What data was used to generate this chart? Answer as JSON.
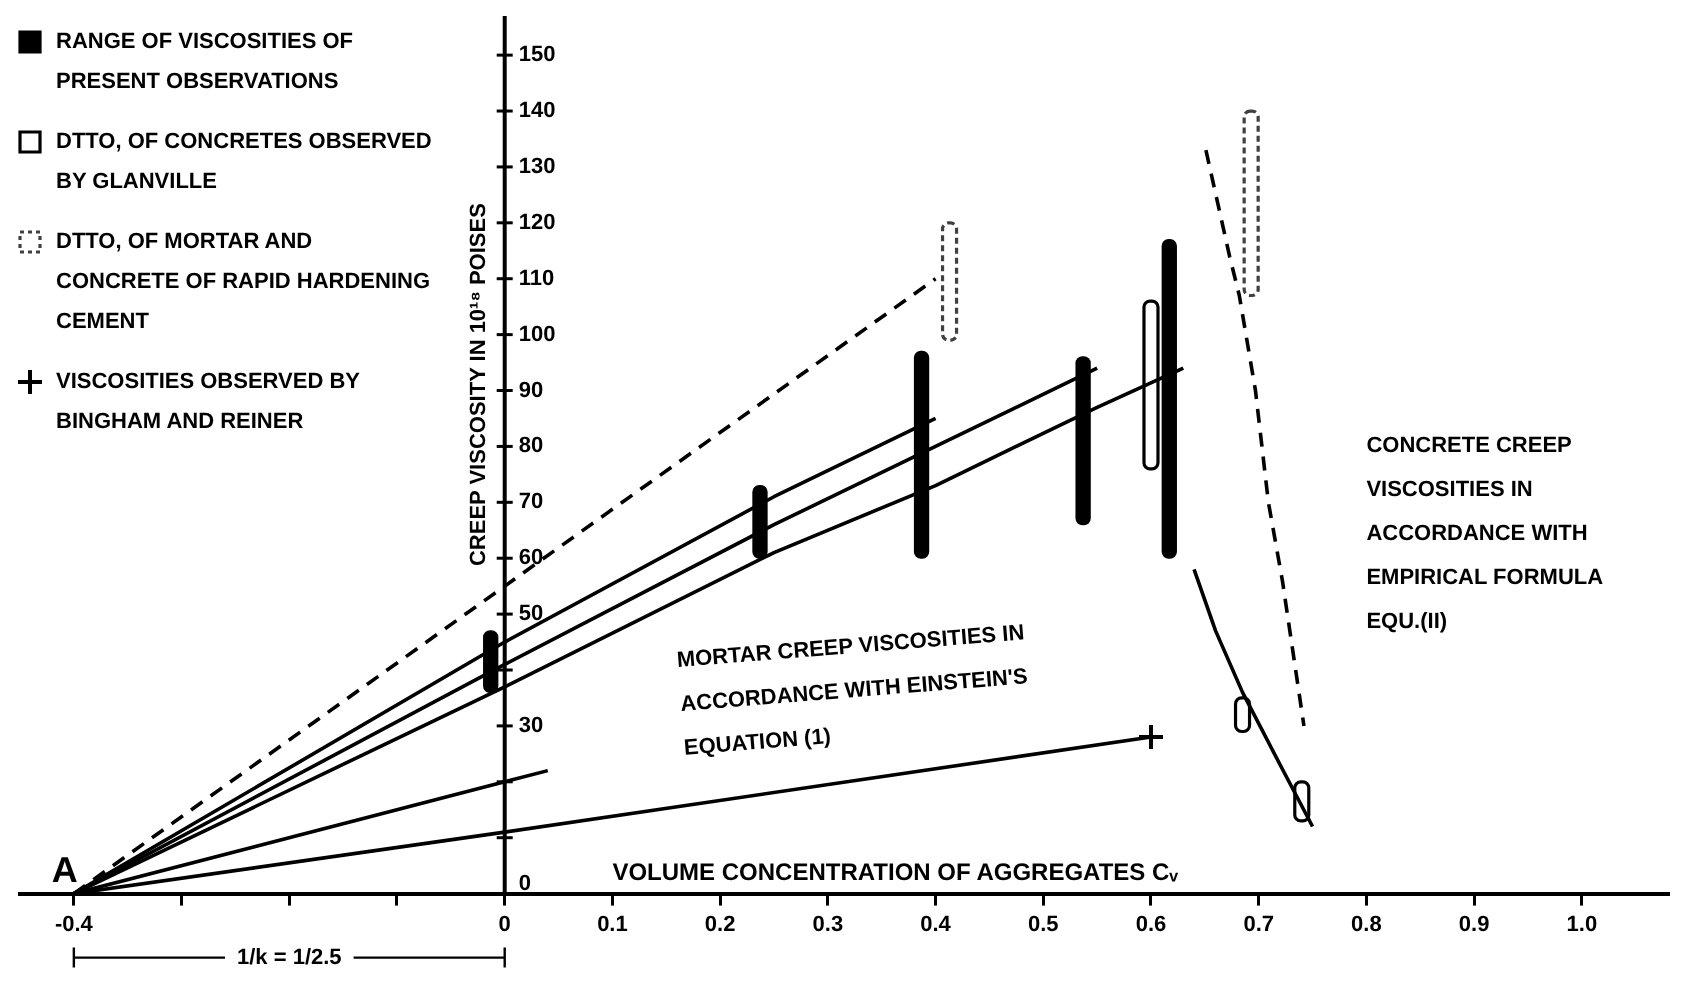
{
  "chart_data": {
    "type": "line",
    "xlabel": "VOLUME CONCENTRATION OF AGGREGATES Cᵥ",
    "ylabel": "CREEP VISCOSITY IN 10¹⁸ POISES",
    "xlim": [
      -0.45,
      1.08
    ],
    "ylim": [
      0,
      157
    ],
    "xticks": [
      -0.4,
      {
        "value": -0.3,
        "label": null
      },
      {
        "value": -0.2,
        "label": null
      },
      {
        "value": -0.1,
        "label": null
      },
      0,
      0.1,
      0.2,
      0.3,
      0.4,
      0.5,
      0.6,
      0.7,
      0.8,
      0.9,
      {
        "value": 1.0,
        "label": "1.0"
      }
    ],
    "yticks": [
      0,
      {
        "value": 10,
        "label": null
      },
      {
        "value": 20,
        "label": null
      },
      30,
      {
        "value": 40,
        "label": null
      },
      50,
      60,
      70,
      80,
      90,
      100,
      110,
      120,
      130,
      140,
      150
    ],
    "legend": "top left",
    "series": [
      {
        "type": "bar",
        "name": "RANGE OF VISCOSITIES OF PRESENT OBSERVATIONS",
        "color": "#000000",
        "x": [
          0,
          0.25,
          0.4,
          0.55,
          0.63
        ],
        "base": [
          36,
          60,
          60,
          66,
          60
        ],
        "values": [
          11,
          13,
          37,
          30,
          57
        ]
      },
      {
        "type": "bar",
        "name": "DTTO, OF CONCRETES OBSERVED BY GLANVILLE",
        "color": "#000000",
        "line_style": "solid",
        "x": [
          0.6,
          0.685,
          0.74
        ],
        "base": [
          76,
          29,
          13
        ],
        "values": [
          30,
          6,
          7
        ]
      },
      {
        "type": "bar",
        "name": "DTTO, OF MORTAR AND CONCRETE OF RAPID HARDENING CEMENT",
        "color": "#404040",
        "line_style": "dashed",
        "x": [
          0.4,
          0.68
        ],
        "base": [
          99,
          107
        ],
        "values": [
          21,
          33
        ]
      },
      {
        "type": "scatter",
        "name": "VISCOSITIES OBSERVED BY BINGHAM AND REINER",
        "color": "#000000",
        "marker": "cross",
        "x": [
          0.6
        ],
        "values": [
          28
        ]
      },
      {
        "color": "#000000",
        "x": [
          -0.4,
          0,
          0.25,
          0.4
        ],
        "values": [
          0,
          45,
          71,
          85
        ]
      },
      {
        "color": "#000000",
        "x": [
          -0.4,
          0,
          0.25,
          0.4,
          0.55
        ],
        "values": [
          0,
          41,
          66,
          80,
          94
        ]
      },
      {
        "color": "#000000",
        "x": [
          -0.4,
          0,
          0.25,
          0.4,
          0.55,
          0.63
        ],
        "values": [
          0,
          37,
          61,
          73,
          87,
          94
        ]
      },
      {
        "color": "#000000",
        "line_style": "dashed",
        "x": [
          -0.4,
          0,
          0.4
        ],
        "values": [
          0,
          55,
          110
        ]
      },
      {
        "color": "#000000",
        "x": [
          -0.4,
          0,
          0.6
        ],
        "values": [
          0,
          11,
          28
        ]
      },
      {
        "color": "#000000",
        "x": [
          -0.4,
          0,
          0.04
        ],
        "values": [
          0,
          20,
          22
        ]
      },
      {
        "color": "#000000",
        "x": [
          0.64,
          0.66,
          0.685,
          0.72,
          0.75
        ],
        "values": [
          58,
          47,
          36,
          23,
          12
        ]
      },
      {
        "color": "#000000",
        "line_style": "dashed",
        "x": [
          0.651,
          0.673,
          0.682,
          0.697,
          0.709,
          0.722,
          0.742
        ],
        "values": [
          133,
          114,
          107,
          90,
          70,
          56,
          30
        ]
      }
    ],
    "annotations": [
      {
        "text": "A",
        "x": -0.4,
        "y": 0
      },
      "1/k = 1/2.5",
      "MORTAR CREEP VISCOSITIES IN ACCORDANCE WITH EINSTEIN'S EQUATION (1)",
      "CONCRETE CREEP VISCOSITIES IN ACCORDANCE WITH EMPIRICAL FORMULA EQU.(II)"
    ]
  }
}
